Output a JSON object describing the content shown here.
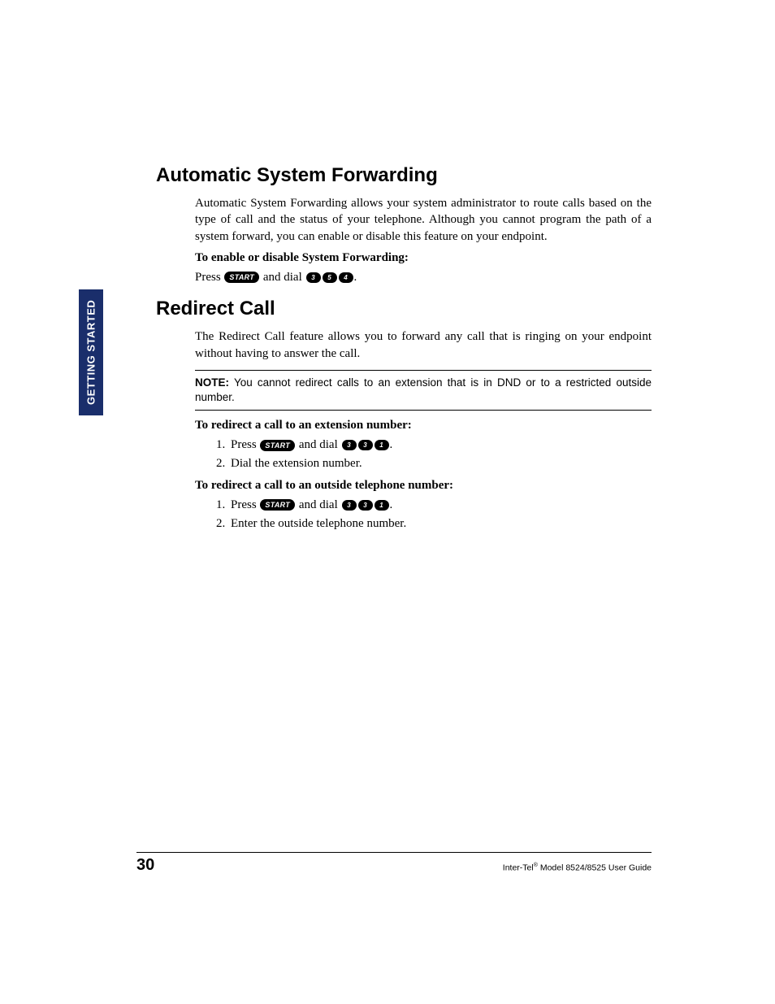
{
  "sidebar": {
    "label": "GETTING STARTED",
    "bg": "#1a2e6b"
  },
  "sections": {
    "asf": {
      "title": "Automatic System Forwarding",
      "para": "Automatic System Forwarding allows your system administrator to route calls based on the type of call and the status of your telephone. Although you cannot program the path of a system forward, you can enable or disable this feature on your endpoint.",
      "instr": "To enable or disable System Forwarding:",
      "press": "Press",
      "and_dial": " and dial ",
      "start": "START",
      "keys": [
        "3",
        "5",
        "4"
      ]
    },
    "redirect": {
      "title": "Redirect Call",
      "para": "The Redirect Call feature allows you to forward any call that is ringing on your endpoint without having to answer the call.",
      "note_label": "NOTE:",
      "note_text": " You cannot redirect calls to an extension that is in DND or to a restricted outside number.",
      "ext": {
        "instr": "To redirect a call to an extension number:",
        "step1_a": "Press ",
        "step1_b": " and dial ",
        "keys": [
          "3",
          "3",
          "1"
        ],
        "step2": "Dial the extension number."
      },
      "out": {
        "instr": "To redirect a call to an outside telephone number:",
        "step1_a": "Press ",
        "step1_b": " and dial ",
        "keys": [
          "3",
          "3",
          "1"
        ],
        "step2": "Enter the outside telephone number."
      }
    }
  },
  "footer": {
    "page": "30",
    "brand": "Inter-Tel",
    "reg": "®",
    "tail": " Model 8524/8525 User Guide"
  }
}
